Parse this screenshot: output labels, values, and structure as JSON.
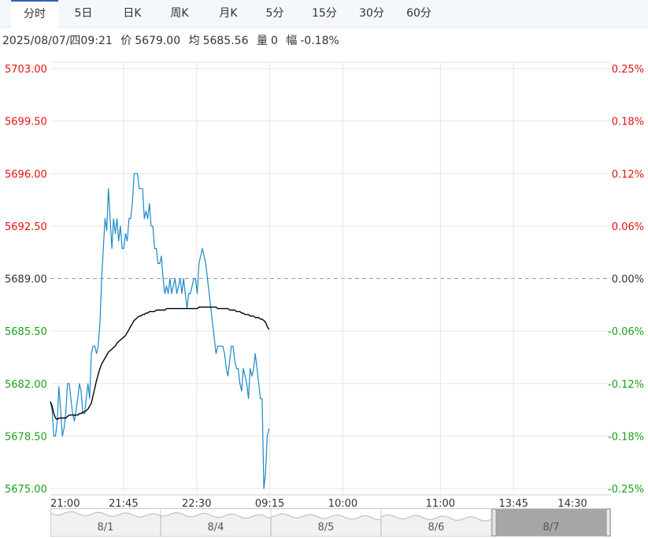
{
  "tabs": [
    {
      "label": "分时",
      "active": true
    },
    {
      "label": "5日",
      "active": false
    },
    {
      "label": "日K",
      "active": false
    },
    {
      "label": "周K",
      "active": false
    },
    {
      "label": "月K",
      "active": false
    },
    {
      "label": "5分",
      "active": false
    },
    {
      "label": "15分",
      "active": false
    },
    {
      "label": "30分",
      "active": false
    },
    {
      "label": "60分",
      "active": false
    }
  ],
  "info": {
    "datetime": "2025/08/07/四09:21",
    "price_label": "价",
    "price": "5679.00",
    "avg_label": "均",
    "avg": "5685.56",
    "vol_label": "量",
    "vol": "0",
    "chg_label": "幅",
    "chg": "-0.18%"
  },
  "colors": {
    "up": "#e4120e",
    "down": "#1aa01a",
    "neutral": "#333333",
    "price_line": "#1a88c9",
    "avg_line": "#000000",
    "grid": "#e6e6e6"
  },
  "chart_data": {
    "type": "line",
    "title": "",
    "xlabel": "",
    "ylabel": "",
    "prev_close": 5689.0,
    "ylim": [
      5675.0,
      5703.0
    ],
    "y_ticks": [
      "5703.00",
      "5699.50",
      "5696.00",
      "5692.50",
      "5689.00",
      "5685.50",
      "5682.00",
      "5678.50",
      "5675.00"
    ],
    "pct_ticks": [
      "0.25%",
      "0.18%",
      "0.12%",
      "0.06%",
      "0.00%",
      "-0.06%",
      "-0.12%",
      "-0.18%",
      "-0.25%"
    ],
    "x_ticks": [
      "21:00",
      "21:45",
      "22:30",
      "09:15",
      "10:00",
      "11:00",
      "13:45",
      "14:30"
    ],
    "total_minutes": 345,
    "x_tick_minutes": [
      0,
      45,
      90,
      135,
      180,
      240,
      285,
      330
    ],
    "session_minutes": 129,
    "grid": true,
    "series": [
      {
        "key": "price",
        "values": [
          5680.8,
          5680.2,
          5678.5,
          5678.5,
          5679.5,
          5681.8,
          5680.2,
          5678.5,
          5679.0,
          5680.0,
          5682.0,
          5682.0,
          5681.0,
          5680.0,
          5679.5,
          5680.2,
          5681.0,
          5682.0,
          5681.5,
          5680.0,
          5680.0,
          5681.0,
          5682.0,
          5681.0,
          5684.0,
          5684.5,
          5684.5,
          5684.0,
          5684.5,
          5686.0,
          5689.0,
          5691.0,
          5693.0,
          5692.2,
          5695.0,
          5693.0,
          5691.0,
          5693.0,
          5692.0,
          5693.0,
          5691.5,
          5692.5,
          5691.0,
          5691.0,
          5692.0,
          5691.5,
          5693.0,
          5693.0,
          5694.0,
          5696.0,
          5696.0,
          5696.0,
          5695.0,
          5695.0,
          5695.0,
          5693.0,
          5693.5,
          5693.0,
          5694.0,
          5692.5,
          5692.5,
          5691.0,
          5691.0,
          5690.0,
          5690.0,
          5690.5,
          5689.0,
          5688.0,
          5688.5,
          5688.0,
          5689.0,
          5688.0,
          5688.5,
          5689.0,
          5688.0,
          5688.5,
          5689.0,
          5688.0,
          5689.0,
          5688.0,
          5687.0,
          5688.0,
          5688.0,
          5688.5,
          5689.0,
          5689.0,
          5688.0,
          5690.0,
          5690.5,
          5691.0,
          5690.5,
          5690.0,
          5689.0,
          5688.0,
          5687.0,
          5686.0,
          5685.0,
          5684.0,
          5684.5,
          5684.5,
          5684.5,
          5684.5,
          5684.0,
          5683.0,
          5682.5,
          5683.5,
          5684.5,
          5684.5,
          5683.5,
          5683.0,
          5683.0,
          5682.0,
          5681.5,
          5683.0,
          5682.5,
          5682.0,
          5681.0,
          5683.0,
          5682.5,
          5683.0,
          5684.0,
          5683.0,
          5682.0,
          5681.0,
          5681.0,
          5675.0,
          5676.0,
          5678.5,
          5679.0
        ]
      },
      {
        "key": "avg",
        "values": [
          5680.8,
          5680.5,
          5680.0,
          5679.7,
          5679.6,
          5679.7,
          5679.7,
          5679.7,
          5679.7,
          5679.7,
          5679.8,
          5679.9,
          5679.9,
          5679.9,
          5679.9,
          5679.9,
          5679.9,
          5680.0,
          5680.0,
          5680.1,
          5680.1,
          5680.2,
          5680.3,
          5680.5,
          5680.7,
          5681.2,
          5681.7,
          5682.2,
          5682.6,
          5683.0,
          5683.3,
          5683.5,
          5683.7,
          5683.9,
          5684.1,
          5684.2,
          5684.3,
          5684.4,
          5684.5,
          5684.7,
          5684.8,
          5684.9,
          5685.0,
          5685.1,
          5685.2,
          5685.4,
          5685.6,
          5685.8,
          5686.0,
          5686.2,
          5686.3,
          5686.4,
          5686.5,
          5686.5,
          5686.6,
          5686.6,
          5686.7,
          5686.7,
          5686.8,
          5686.8,
          5686.8,
          5686.8,
          5686.9,
          5686.9,
          5686.9,
          5686.9,
          5686.9,
          5686.9,
          5687.0,
          5687.0,
          5687.0,
          5687.0,
          5687.0,
          5687.0,
          5687.0,
          5687.0,
          5687.0,
          5687.0,
          5687.0,
          5687.0,
          5687.0,
          5687.0,
          5687.0,
          5687.0,
          5687.0,
          5687.0,
          5687.0,
          5687.1,
          5687.1,
          5687.1,
          5687.1,
          5687.1,
          5687.1,
          5687.1,
          5687.1,
          5687.1,
          5687.1,
          5687.1,
          5687.0,
          5687.0,
          5687.0,
          5687.0,
          5687.0,
          5687.0,
          5687.0,
          5686.9,
          5686.9,
          5686.9,
          5686.9,
          5686.8,
          5686.8,
          5686.8,
          5686.7,
          5686.7,
          5686.6,
          5686.6,
          5686.6,
          5686.5,
          5686.5,
          5686.5,
          5686.4,
          5686.4,
          5686.4,
          5686.3,
          5686.3,
          5686.2,
          5686.1,
          5685.8,
          5685.6
        ]
      }
    ]
  },
  "navigator": {
    "days": [
      "8/1",
      "8/4",
      "8/5",
      "8/6",
      "8/7"
    ],
    "selected": "8/7"
  }
}
